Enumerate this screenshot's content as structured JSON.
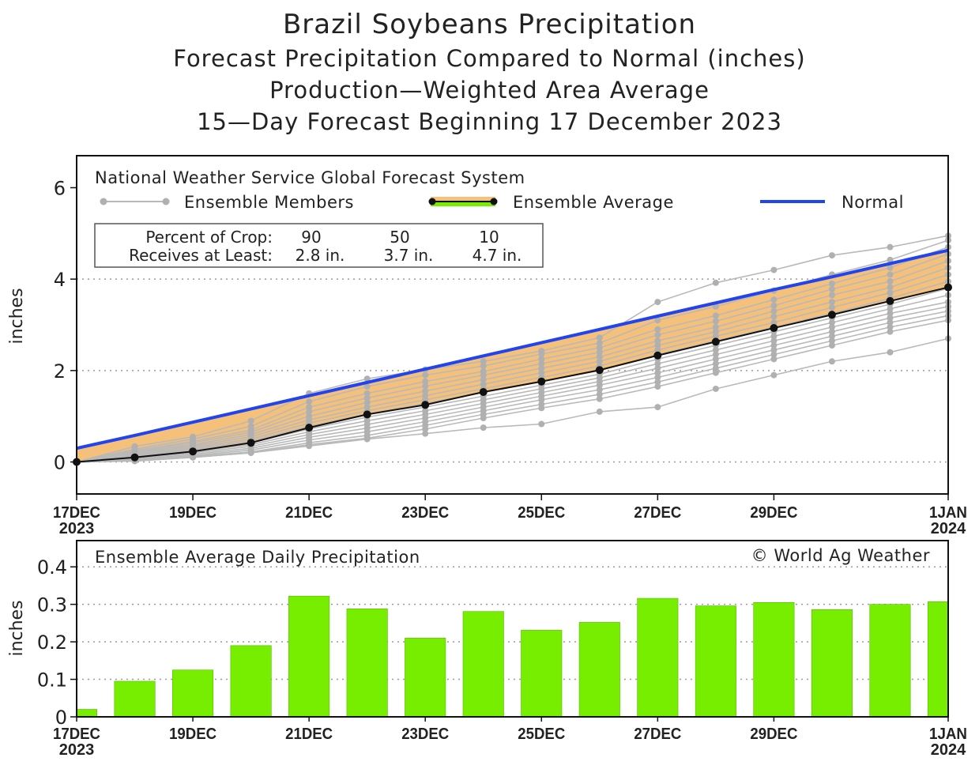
{
  "titles": {
    "title": "Brazil Soybeans Precipitation",
    "subtitle1": "Forecast Precipitation Compared to Normal (inches)",
    "subtitle2": "Production—Weighted Area Average",
    "subtitle3": "15—Day Forecast Beginning 17 December 2023"
  },
  "chart_data": [
    {
      "type": "line",
      "title": "National Weather Service Global Forecast System",
      "ylabel": "inches",
      "ylim": [
        -0.7,
        6.7
      ],
      "yticks": [
        "0",
        "2",
        "4",
        "6"
      ],
      "xlim": [
        0,
        15
      ],
      "xticks": [
        {
          "x": 0,
          "line1": "17DEC",
          "line2": "2023"
        },
        {
          "x": 2,
          "line1": "19DEC",
          "line2": ""
        },
        {
          "x": 4,
          "line1": "21DEC",
          "line2": ""
        },
        {
          "x": 6,
          "line1": "23DEC",
          "line2": ""
        },
        {
          "x": 8,
          "line1": "25DEC",
          "line2": ""
        },
        {
          "x": 10,
          "line1": "27DEC",
          "line2": ""
        },
        {
          "x": 12,
          "line1": "29DEC",
          "line2": ""
        },
        {
          "x": 15,
          "line1": "1JAN",
          "line2": "2024"
        }
      ],
      "legend": {
        "members": "Ensemble Members",
        "average": "Ensemble Average",
        "normal": "Normal"
      },
      "crop_table": {
        "row1_label": "Percent of Crop:",
        "row2_label": "Receives at Least:",
        "percents": [
          "90",
          "50",
          "10"
        ],
        "amounts": [
          "2.8 in.",
          "3.7 in.",
          "4.7 in."
        ]
      },
      "x": [
        0,
        1,
        2,
        3,
        4,
        5,
        6,
        7,
        8,
        9,
        10,
        11,
        12,
        13,
        14,
        15
      ],
      "series": [
        {
          "name": "Ensemble Average",
          "values": [
            0,
            0.1,
            0.23,
            0.42,
            0.75,
            1.04,
            1.25,
            1.53,
            1.76,
            2.01,
            2.33,
            2.63,
            2.93,
            3.22,
            3.52,
            3.82
          ]
        },
        {
          "name": "Normal",
          "values": [
            0.3,
            0.58,
            0.87,
            1.16,
            1.45,
            1.74,
            2.03,
            2.32,
            2.61,
            2.9,
            3.19,
            3.48,
            3.77,
            4.05,
            4.34,
            4.63
          ]
        },
        {
          "name": "Ensemble Members",
          "values": [
            0,
            0.34,
            0.55,
            0.9,
            1.5,
            1.82,
            2.02,
            2.2,
            2.43,
            2.72,
            3.5,
            3.92,
            4.2,
            4.52,
            4.7,
            4.95
          ]
        },
        {
          "name": "Ensemble Members",
          "values": [
            0,
            0.28,
            0.5,
            0.78,
            1.32,
            1.65,
            1.9,
            2.1,
            2.36,
            2.6,
            3.1,
            3.4,
            3.75,
            4.1,
            4.42,
            4.85
          ]
        },
        {
          "name": "Ensemble Members",
          "values": [
            0,
            0.25,
            0.45,
            0.7,
            1.2,
            1.5,
            1.76,
            1.98,
            2.25,
            2.5,
            2.9,
            3.2,
            3.55,
            3.9,
            4.25,
            4.7
          ]
        },
        {
          "name": "Ensemble Members",
          "values": [
            0,
            0.22,
            0.42,
            0.65,
            1.1,
            1.4,
            1.66,
            1.9,
            2.15,
            2.4,
            2.78,
            3.08,
            3.42,
            3.78,
            4.1,
            4.55
          ]
        },
        {
          "name": "Ensemble Members",
          "values": [
            0,
            0.2,
            0.38,
            0.6,
            1.0,
            1.3,
            1.55,
            1.8,
            2.05,
            2.3,
            2.65,
            2.95,
            3.3,
            3.65,
            3.95,
            4.4
          ]
        },
        {
          "name": "Ensemble Members",
          "values": [
            0,
            0.17,
            0.35,
            0.55,
            0.92,
            1.2,
            1.45,
            1.7,
            1.95,
            2.2,
            2.55,
            2.85,
            3.18,
            3.5,
            3.82,
            4.25
          ]
        },
        {
          "name": "Ensemble Members",
          "values": [
            0,
            0.15,
            0.32,
            0.5,
            0.85,
            1.12,
            1.36,
            1.6,
            1.85,
            2.1,
            2.45,
            2.75,
            3.05,
            3.38,
            3.7,
            4.1
          ]
        },
        {
          "name": "Ensemble Members",
          "values": [
            0,
            0.13,
            0.29,
            0.46,
            0.78,
            1.05,
            1.28,
            1.52,
            1.76,
            2.0,
            2.35,
            2.65,
            2.95,
            3.25,
            3.58,
            3.95
          ]
        },
        {
          "name": "Ensemble Members",
          "values": [
            0,
            0.11,
            0.26,
            0.42,
            0.72,
            0.98,
            1.2,
            1.44,
            1.68,
            1.92,
            2.25,
            2.55,
            2.85,
            3.15,
            3.45,
            3.8
          ]
        },
        {
          "name": "Ensemble Members",
          "values": [
            0,
            0.09,
            0.23,
            0.38,
            0.66,
            0.9,
            1.12,
            1.36,
            1.6,
            1.84,
            2.15,
            2.45,
            2.75,
            3.05,
            3.35,
            3.65
          ]
        },
        {
          "name": "Ensemble Members",
          "values": [
            0,
            0.07,
            0.2,
            0.34,
            0.6,
            0.82,
            1.04,
            1.28,
            1.52,
            1.76,
            2.05,
            2.35,
            2.65,
            2.95,
            3.25,
            3.5
          ]
        },
        {
          "name": "Ensemble Members",
          "values": [
            0,
            0.05,
            0.17,
            0.3,
            0.54,
            0.74,
            0.96,
            1.2,
            1.44,
            1.68,
            1.95,
            2.25,
            2.55,
            2.85,
            3.15,
            3.4
          ]
        },
        {
          "name": "Ensemble Members",
          "values": [
            0,
            0.04,
            0.14,
            0.26,
            0.48,
            0.66,
            0.88,
            1.12,
            1.36,
            1.58,
            1.85,
            2.15,
            2.45,
            2.75,
            3.05,
            3.3
          ]
        },
        {
          "name": "Ensemble Members",
          "values": [
            0,
            0.03,
            0.12,
            0.22,
            0.42,
            0.58,
            0.8,
            1.04,
            1.26,
            1.48,
            1.75,
            2.05,
            2.35,
            2.65,
            2.95,
            3.2
          ]
        },
        {
          "name": "Ensemble Members",
          "values": [
            0,
            0.02,
            0.1,
            0.2,
            0.38,
            0.52,
            0.72,
            0.96,
            1.18,
            1.38,
            1.65,
            1.95,
            2.25,
            2.55,
            2.85,
            3.1
          ]
        },
        {
          "name": "Ensemble Members",
          "values": [
            0,
            0.02,
            0.1,
            0.2,
            0.35,
            0.5,
            0.62,
            0.75,
            0.83,
            1.1,
            1.2,
            1.6,
            1.9,
            2.2,
            2.4,
            2.7
          ]
        }
      ]
    },
    {
      "type": "bar",
      "title": "Ensemble Average Daily Precipitation",
      "ylabel": "inches",
      "ylim": [
        0,
        0.47
      ],
      "yticks": [
        "0",
        "0.1",
        "0.2",
        "0.3",
        "0.4"
      ],
      "xlim": [
        0,
        15
      ],
      "xticks": [
        {
          "x": 0,
          "line1": "17DEC",
          "line2": "2023"
        },
        {
          "x": 2,
          "line1": "19DEC",
          "line2": ""
        },
        {
          "x": 4,
          "line1": "21DEC",
          "line2": ""
        },
        {
          "x": 6,
          "line1": "23DEC",
          "line2": ""
        },
        {
          "x": 8,
          "line1": "25DEC",
          "line2": ""
        },
        {
          "x": 10,
          "line1": "27DEC",
          "line2": ""
        },
        {
          "x": 12,
          "line1": "29DEC",
          "line2": ""
        },
        {
          "x": 15,
          "line1": "1JAN",
          "line2": "2024"
        }
      ],
      "copyright": "© World Ag Weather",
      "x": [
        0,
        1,
        2,
        3,
        4,
        5,
        6,
        7,
        8,
        9,
        10,
        11,
        12,
        13,
        14,
        15
      ],
      "values": [
        0.02,
        0.095,
        0.125,
        0.19,
        0.322,
        0.288,
        0.21,
        0.281,
        0.231,
        0.252,
        0.316,
        0.296,
        0.305,
        0.286,
        0.3,
        0.307
      ]
    }
  ],
  "colors": {
    "band": "#f5c07a",
    "normal": "#2244ee",
    "average": "#111111",
    "members": "#b9b9b9",
    "bar": "#77ee00",
    "bar_edge": "#55bb00"
  }
}
